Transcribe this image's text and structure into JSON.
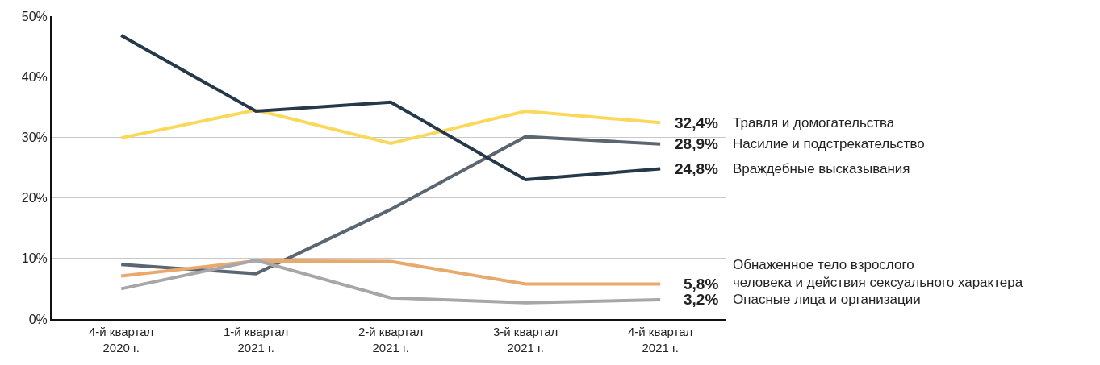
{
  "chart_data": {
    "type": "line",
    "categories": [
      "4-й квартал\n2020 г.",
      "1-й квартал\n2021 г.",
      "2-й квартал\n2021 г.",
      "3-й квартал\n2021 г.",
      "4-й квартал\n2021 г."
    ],
    "series": [
      {
        "name": "Травля и домогательства",
        "color": "#fad85a",
        "values": [
          29.9,
          34.5,
          29.0,
          34.3,
          32.4
        ],
        "value_labels": [
          null,
          null,
          null,
          null,
          "32,4%"
        ]
      },
      {
        "name": "Насилие и подстрекательство",
        "color": "#5b6670",
        "values": [
          9.0,
          7.5,
          18.1,
          30.1,
          28.9
        ],
        "value_labels": [
          null,
          null,
          null,
          null,
          "28,9%"
        ]
      },
      {
        "name": "Враждебные высказывания",
        "color": "#26394a",
        "values": [
          46.8,
          34.3,
          35.8,
          23.0,
          24.8
        ],
        "value_labels": [
          null,
          null,
          null,
          null,
          "24,8%"
        ]
      },
      {
        "name": "Обнаженное тело взрослого\nчеловека и действия сексуального характера",
        "color": "#e9a86c",
        "values": [
          7.1,
          9.6,
          9.5,
          5.8,
          5.8
        ],
        "value_labels": [
          null,
          null,
          null,
          null,
          "5,8%"
        ]
      },
      {
        "name": "Опасные лица и организации",
        "color": "#a7a7aa",
        "values": [
          5.0,
          9.7,
          3.5,
          2.7,
          3.2
        ],
        "value_labels": [
          null,
          null,
          null,
          null,
          "3,2%"
        ]
      }
    ],
    "ylim": [
      0,
      50
    ],
    "yticks": [
      {
        "value": 0,
        "label": "0%"
      },
      {
        "value": 10,
        "label": "10%"
      },
      {
        "value": 20,
        "label": "20%"
      },
      {
        "value": 30,
        "label": "30%"
      },
      {
        "value": 40,
        "label": "40%"
      },
      {
        "value": 50,
        "label": "50%"
      }
    ],
    "grid": "y",
    "legend": false,
    "marker": "none",
    "line_style": "solid"
  }
}
